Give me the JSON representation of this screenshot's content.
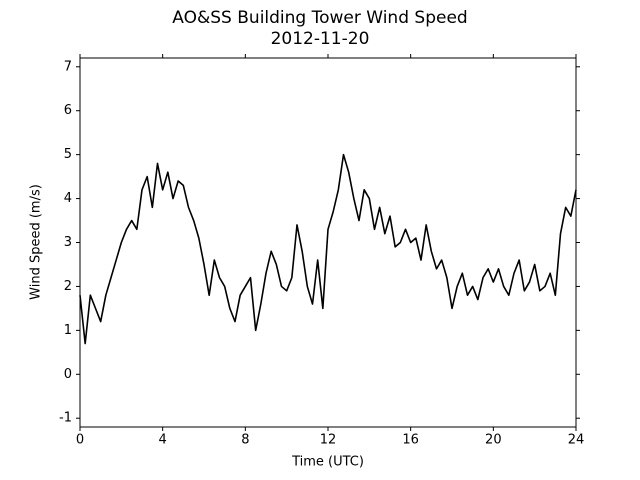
{
  "chart_data": {
    "type": "line",
    "title": "AO&SS Building Tower Wind Speed",
    "subtitle": "2012-11-20",
    "x_label": "Time (UTC)",
    "y_label": "Wind Speed (m/s)",
    "xlim": [
      0,
      24
    ],
    "xticks": [
      0,
      4,
      8,
      12,
      16,
      20,
      24
    ],
    "ylim": [
      -1.2,
      7.2
    ],
    "yticks": [
      -1,
      0,
      1,
      2,
      3,
      4,
      5,
      6,
      7
    ],
    "grid": false,
    "x": [
      0,
      0.25,
      0.5,
      0.75,
      1,
      1.25,
      1.5,
      1.75,
      2,
      2.25,
      2.5,
      2.75,
      3,
      3.25,
      3.5,
      3.75,
      4,
      4.25,
      4.5,
      4.75,
      5,
      5.25,
      5.5,
      5.75,
      6,
      6.25,
      6.5,
      6.75,
      7,
      7.25,
      7.5,
      7.75,
      8,
      8.25,
      8.5,
      8.75,
      9,
      9.25,
      9.5,
      9.75,
      10,
      10.25,
      10.5,
      10.75,
      11,
      11.25,
      11.5,
      11.75,
      12,
      12.25,
      12.5,
      12.75,
      13,
      13.25,
      13.5,
      13.75,
      14,
      14.25,
      14.5,
      14.75,
      15,
      15.25,
      15.5,
      15.75,
      16,
      16.25,
      16.5,
      16.75,
      17,
      17.25,
      17.5,
      17.75,
      18,
      18.25,
      18.5,
      18.75,
      19,
      19.25,
      19.5,
      19.75,
      20,
      20.25,
      20.5,
      20.75,
      21,
      21.25,
      21.5,
      21.75,
      22,
      22.25,
      22.5,
      22.75,
      23,
      23.25,
      23.5,
      23.75,
      24
    ],
    "series": [
      {
        "name": "Wind Speed",
        "color": "#000000",
        "values": [
          1.8,
          0.7,
          1.8,
          1.5,
          1.2,
          1.8,
          2.2,
          2.6,
          3.0,
          3.3,
          3.5,
          3.3,
          4.2,
          4.5,
          3.8,
          4.8,
          4.2,
          4.6,
          4.0,
          4.4,
          4.3,
          3.8,
          3.5,
          3.1,
          2.5,
          1.8,
          2.6,
          2.2,
          2.0,
          1.5,
          1.2,
          1.8,
          2.0,
          2.2,
          1.0,
          1.6,
          2.3,
          2.8,
          2.5,
          2.0,
          1.9,
          2.2,
          3.4,
          2.8,
          2.0,
          1.6,
          2.6,
          1.5,
          3.3,
          3.7,
          4.2,
          5.0,
          4.6,
          4.0,
          3.5,
          4.2,
          4.0,
          3.3,
          3.8,
          3.2,
          3.6,
          2.9,
          3.0,
          3.3,
          3.0,
          3.1,
          2.6,
          3.4,
          2.8,
          2.4,
          2.6,
          2.2,
          1.5,
          2.0,
          2.3,
          1.8,
          2.0,
          1.7,
          2.2,
          2.4,
          2.1,
          2.4,
          2.0,
          1.8,
          2.3,
          2.6,
          1.9,
          2.1,
          2.5,
          1.9,
          2.0,
          2.3,
          1.8,
          3.2,
          3.8,
          3.6,
          4.2
        ]
      }
    ]
  }
}
